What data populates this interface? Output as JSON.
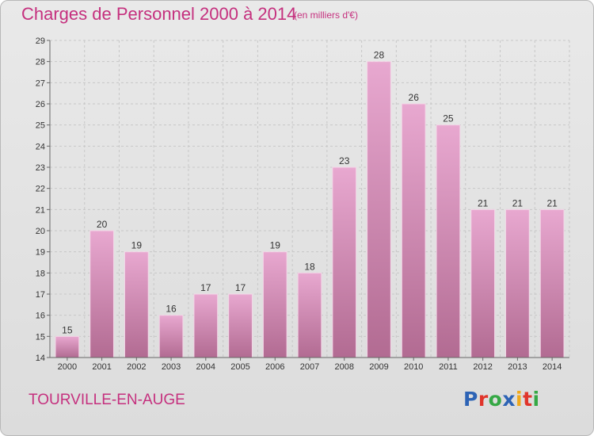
{
  "header": {
    "title": "Charges de Personnel 2000 à 2014",
    "subtitle": "(en milliers d'€)"
  },
  "footer": {
    "town": "TOURVILLE-EN-AUGE",
    "logo_text": "Proxiti",
    "logo_letter_colors": [
      "#2d63b5",
      "#e0352b",
      "#35a845",
      "#2d63b5",
      "#f0a91c",
      "#e0352b",
      "#35a845"
    ]
  },
  "colors": {
    "title": "#c5307e",
    "bar_top": "#e8a8d0",
    "bar_bottom": "#b26b92",
    "axis_text": "#333333"
  },
  "chart_data": {
    "type": "bar",
    "title": "Charges de Personnel 2000 à 2014",
    "subtitle": "(en milliers d'€)",
    "categories": [
      "2000",
      "2001",
      "2002",
      "2003",
      "2004",
      "2005",
      "2006",
      "2007",
      "2008",
      "2009",
      "2010",
      "2011",
      "2012",
      "2013",
      "2014"
    ],
    "values": [
      15,
      20,
      19,
      16,
      17,
      17,
      19,
      18,
      23,
      28,
      26,
      25,
      21,
      21,
      21
    ],
    "ylim": [
      14,
      29
    ],
    "yticks": [
      14,
      15,
      16,
      17,
      18,
      19,
      20,
      21,
      22,
      23,
      24,
      25,
      26,
      27,
      28,
      29
    ],
    "grid": true,
    "xlabel": "",
    "ylabel": ""
  }
}
